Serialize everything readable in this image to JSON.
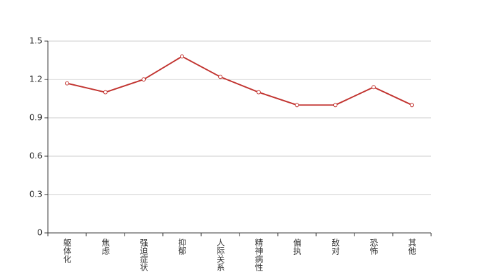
{
  "chart_data": {
    "type": "line",
    "categories": [
      "躯体化",
      "焦虑",
      "强迫症状",
      "抑郁",
      "人际关系",
      "精神病性",
      "偏执",
      "敌对",
      "恐怖",
      "其他"
    ],
    "series": [
      {
        "color": "#c23531",
        "values": [
          1.17,
          1.1,
          1.2,
          1.38,
          1.22,
          1.1,
          1.0,
          1.0,
          1.14,
          1.0
        ]
      }
    ],
    "ylim": [
      0,
      1.5
    ],
    "yticks": [
      0,
      0.3,
      0.6,
      0.9,
      1.2,
      1.5
    ],
    "grid": true
  }
}
